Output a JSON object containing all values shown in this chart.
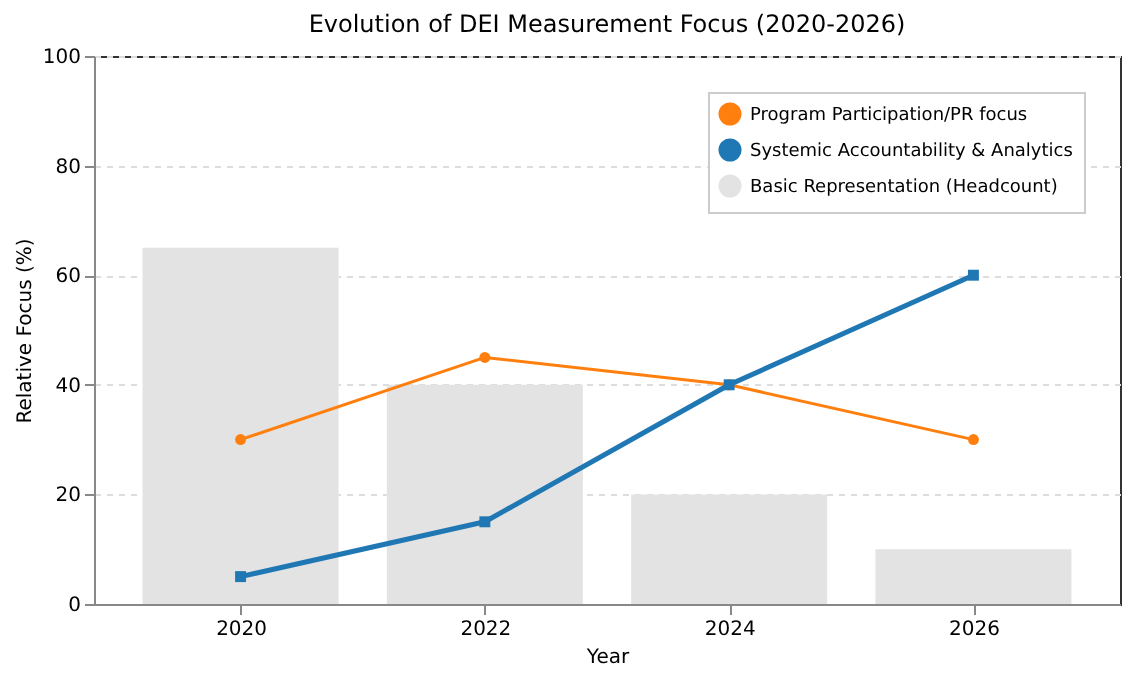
{
  "chart_data": {
    "type": "line",
    "title": "Evolution of DEI Measurement Focus (2020-2026)",
    "xlabel": "Year",
    "ylabel": "Relative Focus (%)",
    "x": [
      2020,
      2022,
      2024,
      2026
    ],
    "series": [
      {
        "name": "Program Participation/PR focus",
        "color": "#ff7f0e",
        "marker": "circle",
        "values": [
          30,
          45,
          40,
          30
        ]
      },
      {
        "name": "Systemic Accountability & Analytics",
        "color": "#1f77b4",
        "marker": "square",
        "values": [
          5,
          15,
          40,
          60
        ]
      },
      {
        "name": "Basic Representation (Headcount)",
        "color": "#e3e3e3",
        "type": "bar",
        "values": [
          65,
          40,
          20,
          10
        ]
      }
    ],
    "xlim": [
      2018.8,
      2027.2
    ],
    "xticks": [
      2020,
      2022,
      2024,
      2026
    ],
    "ylim": [
      0,
      100
    ],
    "yticks": [
      0,
      20,
      40,
      60,
      80,
      100
    ],
    "grid": "y",
    "legend": "top right"
  }
}
